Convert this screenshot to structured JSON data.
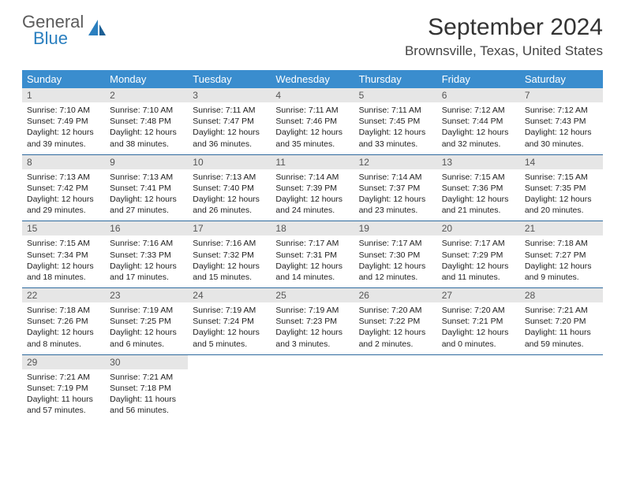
{
  "logo": {
    "top": "General",
    "bottom": "Blue",
    "icon_color": "#2a7fbf"
  },
  "title": "September 2024",
  "location": "Brownsville, Texas, United States",
  "weekdays": [
    "Sunday",
    "Monday",
    "Tuesday",
    "Wednesday",
    "Thursday",
    "Friday",
    "Saturday"
  ],
  "colors": {
    "header_bg": "#3a8dce",
    "row_border": "#2e6a9e",
    "daynum_bg": "#e6e6e6"
  },
  "weeks": [
    [
      {
        "num": "1",
        "sunrise": "Sunrise: 7:10 AM",
        "sunset": "Sunset: 7:49 PM",
        "daylight": "Daylight: 12 hours and 39 minutes."
      },
      {
        "num": "2",
        "sunrise": "Sunrise: 7:10 AM",
        "sunset": "Sunset: 7:48 PM",
        "daylight": "Daylight: 12 hours and 38 minutes."
      },
      {
        "num": "3",
        "sunrise": "Sunrise: 7:11 AM",
        "sunset": "Sunset: 7:47 PM",
        "daylight": "Daylight: 12 hours and 36 minutes."
      },
      {
        "num": "4",
        "sunrise": "Sunrise: 7:11 AM",
        "sunset": "Sunset: 7:46 PM",
        "daylight": "Daylight: 12 hours and 35 minutes."
      },
      {
        "num": "5",
        "sunrise": "Sunrise: 7:11 AM",
        "sunset": "Sunset: 7:45 PM",
        "daylight": "Daylight: 12 hours and 33 minutes."
      },
      {
        "num": "6",
        "sunrise": "Sunrise: 7:12 AM",
        "sunset": "Sunset: 7:44 PM",
        "daylight": "Daylight: 12 hours and 32 minutes."
      },
      {
        "num": "7",
        "sunrise": "Sunrise: 7:12 AM",
        "sunset": "Sunset: 7:43 PM",
        "daylight": "Daylight: 12 hours and 30 minutes."
      }
    ],
    [
      {
        "num": "8",
        "sunrise": "Sunrise: 7:13 AM",
        "sunset": "Sunset: 7:42 PM",
        "daylight": "Daylight: 12 hours and 29 minutes."
      },
      {
        "num": "9",
        "sunrise": "Sunrise: 7:13 AM",
        "sunset": "Sunset: 7:41 PM",
        "daylight": "Daylight: 12 hours and 27 minutes."
      },
      {
        "num": "10",
        "sunrise": "Sunrise: 7:13 AM",
        "sunset": "Sunset: 7:40 PM",
        "daylight": "Daylight: 12 hours and 26 minutes."
      },
      {
        "num": "11",
        "sunrise": "Sunrise: 7:14 AM",
        "sunset": "Sunset: 7:39 PM",
        "daylight": "Daylight: 12 hours and 24 minutes."
      },
      {
        "num": "12",
        "sunrise": "Sunrise: 7:14 AM",
        "sunset": "Sunset: 7:37 PM",
        "daylight": "Daylight: 12 hours and 23 minutes."
      },
      {
        "num": "13",
        "sunrise": "Sunrise: 7:15 AM",
        "sunset": "Sunset: 7:36 PM",
        "daylight": "Daylight: 12 hours and 21 minutes."
      },
      {
        "num": "14",
        "sunrise": "Sunrise: 7:15 AM",
        "sunset": "Sunset: 7:35 PM",
        "daylight": "Daylight: 12 hours and 20 minutes."
      }
    ],
    [
      {
        "num": "15",
        "sunrise": "Sunrise: 7:15 AM",
        "sunset": "Sunset: 7:34 PM",
        "daylight": "Daylight: 12 hours and 18 minutes."
      },
      {
        "num": "16",
        "sunrise": "Sunrise: 7:16 AM",
        "sunset": "Sunset: 7:33 PM",
        "daylight": "Daylight: 12 hours and 17 minutes."
      },
      {
        "num": "17",
        "sunrise": "Sunrise: 7:16 AM",
        "sunset": "Sunset: 7:32 PM",
        "daylight": "Daylight: 12 hours and 15 minutes."
      },
      {
        "num": "18",
        "sunrise": "Sunrise: 7:17 AM",
        "sunset": "Sunset: 7:31 PM",
        "daylight": "Daylight: 12 hours and 14 minutes."
      },
      {
        "num": "19",
        "sunrise": "Sunrise: 7:17 AM",
        "sunset": "Sunset: 7:30 PM",
        "daylight": "Daylight: 12 hours and 12 minutes."
      },
      {
        "num": "20",
        "sunrise": "Sunrise: 7:17 AM",
        "sunset": "Sunset: 7:29 PM",
        "daylight": "Daylight: 12 hours and 11 minutes."
      },
      {
        "num": "21",
        "sunrise": "Sunrise: 7:18 AM",
        "sunset": "Sunset: 7:27 PM",
        "daylight": "Daylight: 12 hours and 9 minutes."
      }
    ],
    [
      {
        "num": "22",
        "sunrise": "Sunrise: 7:18 AM",
        "sunset": "Sunset: 7:26 PM",
        "daylight": "Daylight: 12 hours and 8 minutes."
      },
      {
        "num": "23",
        "sunrise": "Sunrise: 7:19 AM",
        "sunset": "Sunset: 7:25 PM",
        "daylight": "Daylight: 12 hours and 6 minutes."
      },
      {
        "num": "24",
        "sunrise": "Sunrise: 7:19 AM",
        "sunset": "Sunset: 7:24 PM",
        "daylight": "Daylight: 12 hours and 5 minutes."
      },
      {
        "num": "25",
        "sunrise": "Sunrise: 7:19 AM",
        "sunset": "Sunset: 7:23 PM",
        "daylight": "Daylight: 12 hours and 3 minutes."
      },
      {
        "num": "26",
        "sunrise": "Sunrise: 7:20 AM",
        "sunset": "Sunset: 7:22 PM",
        "daylight": "Daylight: 12 hours and 2 minutes."
      },
      {
        "num": "27",
        "sunrise": "Sunrise: 7:20 AM",
        "sunset": "Sunset: 7:21 PM",
        "daylight": "Daylight: 12 hours and 0 minutes."
      },
      {
        "num": "28",
        "sunrise": "Sunrise: 7:21 AM",
        "sunset": "Sunset: 7:20 PM",
        "daylight": "Daylight: 11 hours and 59 minutes."
      }
    ],
    [
      {
        "num": "29",
        "sunrise": "Sunrise: 7:21 AM",
        "sunset": "Sunset: 7:19 PM",
        "daylight": "Daylight: 11 hours and 57 minutes."
      },
      {
        "num": "30",
        "sunrise": "Sunrise: 7:21 AM",
        "sunset": "Sunset: 7:18 PM",
        "daylight": "Daylight: 11 hours and 56 minutes."
      },
      null,
      null,
      null,
      null,
      null
    ]
  ]
}
